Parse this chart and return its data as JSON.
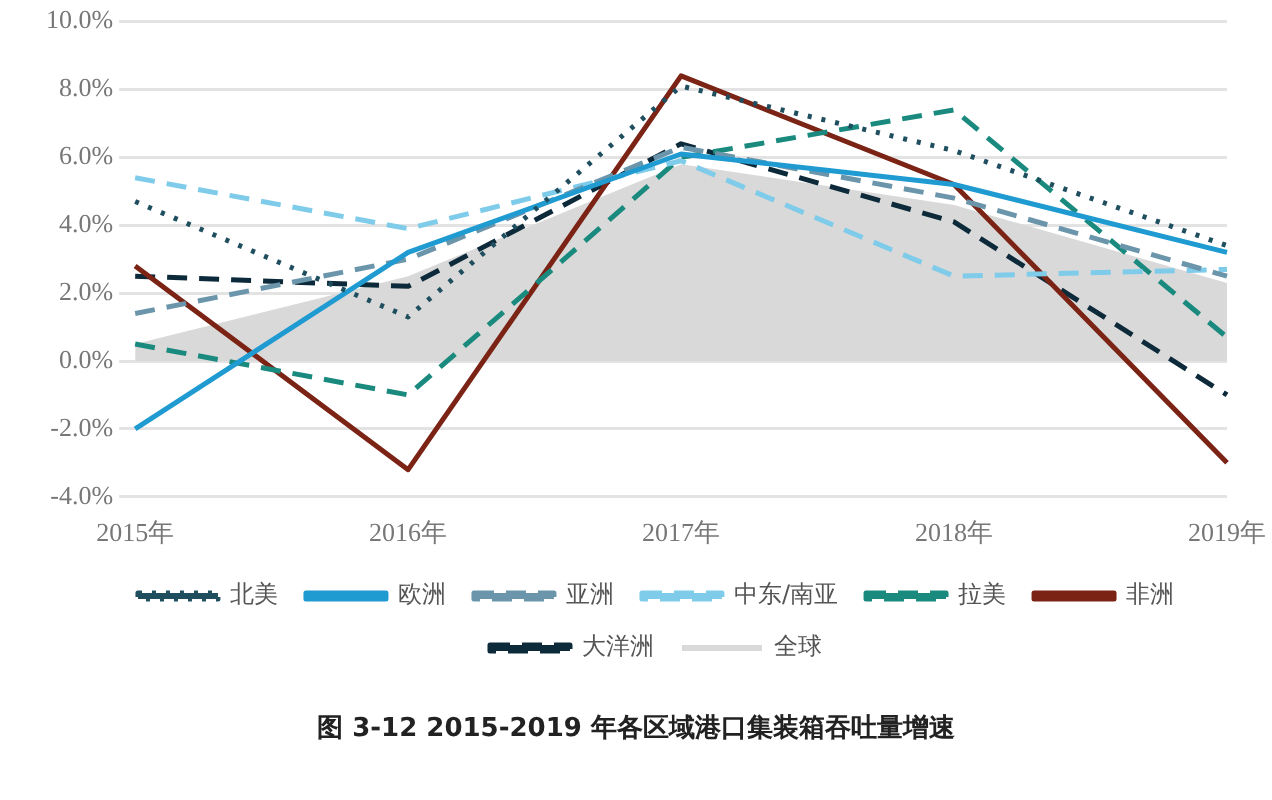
{
  "chart_data": {
    "type": "line",
    "categories": [
      "2015年",
      "2016年",
      "2017年",
      "2018年",
      "2019年"
    ],
    "series": [
      {
        "name": "全球",
        "type": "area",
        "color": "#d9d9d9",
        "values": [
          0.5,
          2.5,
          5.8,
          4.6,
          2.3
        ]
      },
      {
        "name": "北美",
        "color": "#1f4e5f",
        "line_style": "dotted",
        "values": [
          4.7,
          1.3,
          8.1,
          6.2,
          3.4
        ]
      },
      {
        "name": "欧洲",
        "color": "#1f9bd1",
        "line_style": "solid",
        "values": [
          -2.0,
          3.2,
          6.1,
          5.2,
          3.2
        ]
      },
      {
        "name": "亚洲",
        "color": "#6b95aa",
        "line_style": "dashed",
        "values": [
          1.4,
          3.0,
          6.3,
          4.8,
          2.5
        ]
      },
      {
        "name": "中东/南亚",
        "color": "#7ecbea",
        "line_style": "dashed",
        "values": [
          5.4,
          3.9,
          5.9,
          2.5,
          2.7
        ]
      },
      {
        "name": "拉美",
        "color": "#1a8a7e",
        "line_style": "dashed",
        "values": [
          0.5,
          -1.0,
          6.0,
          7.4,
          0.7
        ]
      },
      {
        "name": "非洲",
        "color": "#7b2314",
        "line_style": "solid",
        "values": [
          2.8,
          -3.2,
          8.4,
          5.2,
          -3.0
        ]
      },
      {
        "name": "大洋洲",
        "color": "#0d2a3a",
        "line_style": "dashed",
        "values": [
          2.5,
          2.2,
          6.4,
          4.1,
          -1.0
        ]
      }
    ],
    "ylim": [
      -4,
      10
    ],
    "yticks": [
      {
        "value": -4,
        "label": "-4.0%"
      },
      {
        "value": -2,
        "label": "-2.0%"
      },
      {
        "value": 0,
        "label": "0.0%"
      },
      {
        "value": 2,
        "label": "2.0%"
      },
      {
        "value": 4,
        "label": "4.0%"
      },
      {
        "value": 6,
        "label": "6.0%"
      },
      {
        "value": 8,
        "label": "8.0%"
      },
      {
        "value": 10,
        "label": "10.0%"
      }
    ],
    "grid": "y",
    "legend": "bottom",
    "marker": "none",
    "annotations": [
      "图 3-12   2015-2019 年各区域港口集装箱吞吐量增速"
    ]
  }
}
